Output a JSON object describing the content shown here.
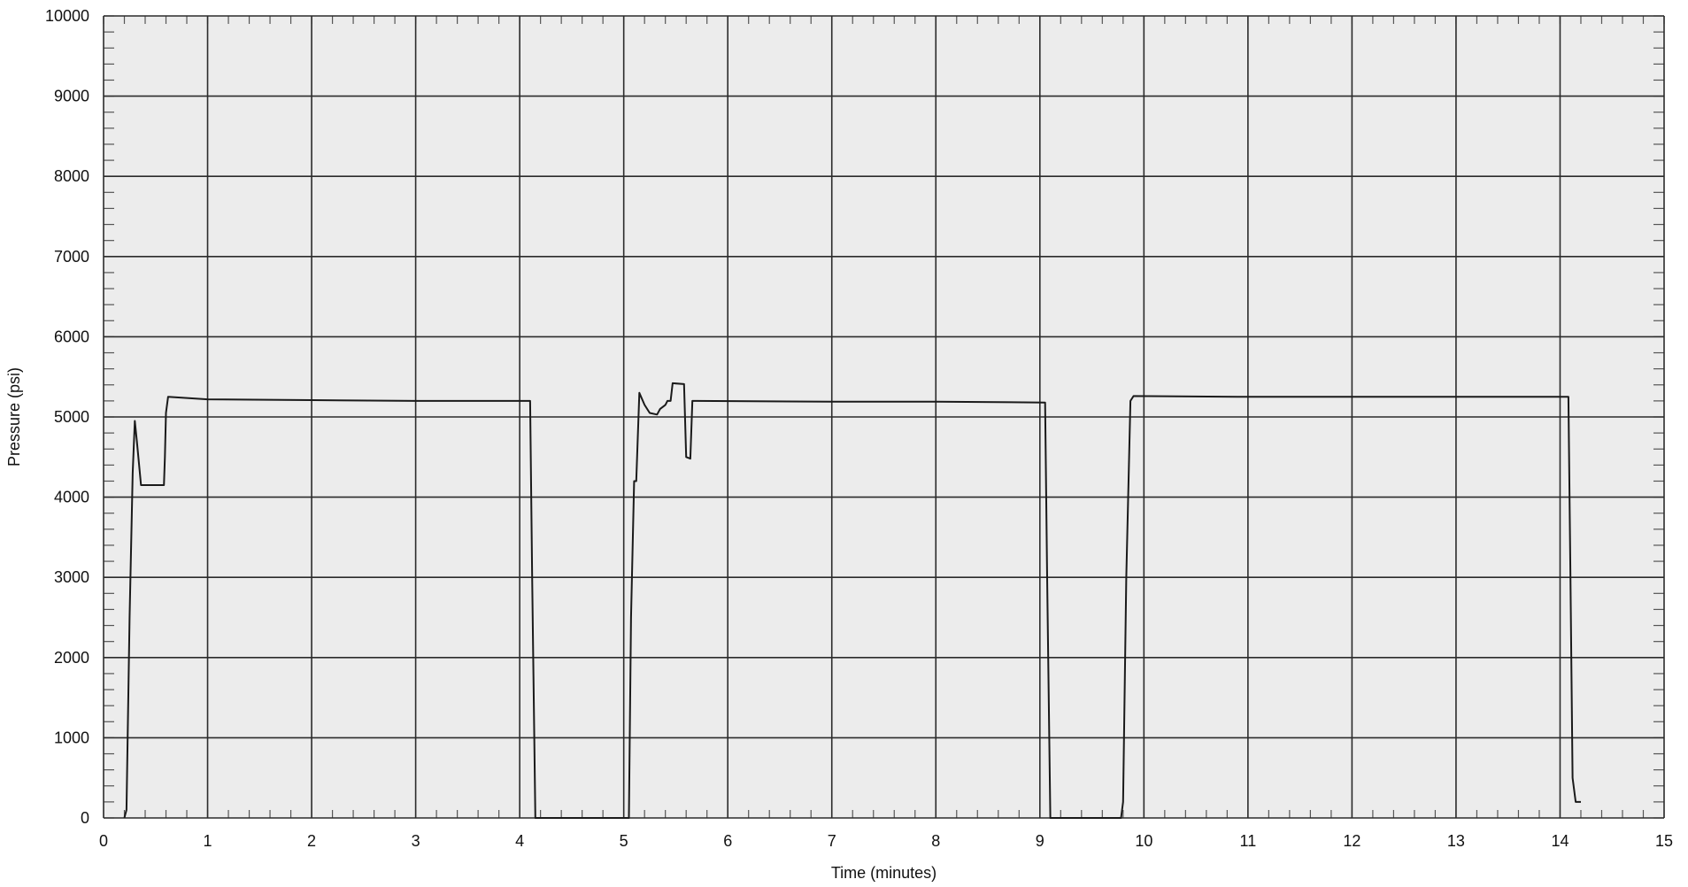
{
  "chart_data": {
    "type": "line",
    "title": "",
    "xlabel": "Time (minutes)",
    "ylabel": "Pressure (psi)",
    "xlim": [
      0,
      15
    ],
    "ylim": [
      0,
      10000
    ],
    "x_ticks": [
      0,
      1,
      2,
      3,
      4,
      5,
      6,
      7,
      8,
      9,
      10,
      11,
      12,
      13,
      14,
      15
    ],
    "y_ticks": [
      0,
      1000,
      2000,
      3000,
      4000,
      5000,
      6000,
      7000,
      8000,
      9000,
      10000
    ],
    "x_minor_per_major": 5,
    "y_minor_per_major": 5,
    "grid": true,
    "colors": {
      "line": "#1a1a1a",
      "grid": "#2b2b2b",
      "minor_tick": "#555555",
      "background": "#ececec"
    },
    "series": [
      {
        "values": [
          [
            0.2,
            0
          ],
          [
            0.22,
            100
          ],
          [
            0.25,
            2500
          ],
          [
            0.28,
            4300
          ],
          [
            0.3,
            4950
          ],
          [
            0.32,
            4700
          ],
          [
            0.36,
            4150
          ],
          [
            0.45,
            4150
          ],
          [
            0.58,
            4150
          ],
          [
            0.59,
            4500
          ],
          [
            0.6,
            5050
          ],
          [
            0.62,
            5250
          ],
          [
            1.0,
            5220
          ],
          [
            2.0,
            5210
          ],
          [
            3.0,
            5200
          ],
          [
            4.1,
            5200
          ],
          [
            4.12,
            3000
          ],
          [
            4.15,
            0
          ],
          [
            5.05,
            0
          ],
          [
            5.07,
            2500
          ],
          [
            5.1,
            4200
          ],
          [
            5.12,
            4200
          ],
          [
            5.15,
            5300
          ],
          [
            5.2,
            5150
          ],
          [
            5.25,
            5050
          ],
          [
            5.32,
            5030
          ],
          [
            5.35,
            5100
          ],
          [
            5.4,
            5150
          ],
          [
            5.42,
            5200
          ],
          [
            5.45,
            5200
          ],
          [
            5.47,
            5420
          ],
          [
            5.58,
            5410
          ],
          [
            5.6,
            4500
          ],
          [
            5.64,
            4480
          ],
          [
            5.66,
            5200
          ],
          [
            5.7,
            5200
          ],
          [
            7.0,
            5190
          ],
          [
            8.0,
            5190
          ],
          [
            9.05,
            5180
          ],
          [
            9.07,
            3000
          ],
          [
            9.1,
            0
          ],
          [
            9.78,
            0
          ],
          [
            9.8,
            200
          ],
          [
            9.83,
            3000
          ],
          [
            9.87,
            5200
          ],
          [
            9.9,
            5260
          ],
          [
            11.0,
            5250
          ],
          [
            12.0,
            5250
          ],
          [
            13.0,
            5250
          ],
          [
            14.08,
            5250
          ],
          [
            14.1,
            3000
          ],
          [
            14.12,
            500
          ],
          [
            14.15,
            200
          ],
          [
            14.2,
            200
          ]
        ]
      }
    ]
  }
}
